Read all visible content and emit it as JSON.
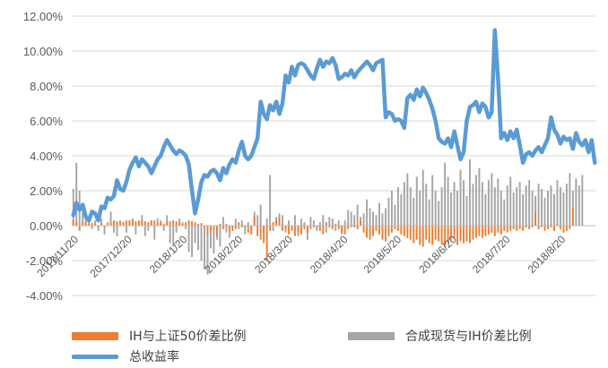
{
  "chart_data": {
    "type": "bar+line",
    "y_axis": {
      "ticks": [
        "12.00%",
        "10.00%",
        "8.00%",
        "6.00%",
        "4.00%",
        "2.00%",
        "0.00%",
        "-2.00%",
        "-4.00%"
      ],
      "tick_values": [
        12,
        10,
        8,
        6,
        4,
        2,
        0,
        -2,
        -4
      ],
      "min": -4,
      "max": 12
    },
    "x_axis": {
      "ticks": [
        "2017/11/20",
        "2017/12/20",
        "2018/1/20",
        "2018/2/20",
        "2018/3/20",
        "2018/4/20",
        "2018/5/20",
        "2018/6/20",
        "2018/7/20",
        "2018/8/20"
      ],
      "start_date": "2017-11-20",
      "end_date": "2018-09-10"
    },
    "grid": "horizontal",
    "legend_position": "bottom",
    "series": [
      {
        "name": "IH与上证50价差比例",
        "type": "bar",
        "color": "#ED7D31",
        "unit": "%",
        "values": [
          0.3,
          0.2,
          -0.3,
          0.25,
          0.2,
          0.1,
          0.15,
          0.1,
          -0.1,
          0.1,
          -0.1,
          0.05,
          0.2,
          0.3,
          0.25,
          0.2,
          0.2,
          0.3,
          0.3,
          0.35,
          0.25,
          0.3,
          0.3,
          0.25,
          0.2,
          0.3,
          0.3,
          0.15,
          0.2,
          0.1,
          0.2,
          0.25,
          0.3,
          0.25,
          0.2,
          0.1,
          0.2,
          0.3,
          0.25,
          0.2,
          0.1,
          0.15,
          -0.1,
          -0.5,
          -0.3,
          -0.2,
          -0.6,
          0.1,
          -0.2,
          0.1,
          -0.3,
          -0.3,
          -0.2,
          0.2,
          -0.1,
          -0.1,
          -0.4,
          -0.5,
          0.5,
          -0.6,
          -0.8,
          -1.0,
          -2.0,
          -0.3,
          0.2,
          0.3,
          0.5,
          -0.3,
          -0.2,
          -0.5,
          -0.3,
          -0.6,
          -0.4,
          -0.5,
          -0.2,
          -0.4,
          -0.2,
          -0.1,
          -0.1,
          -0.3,
          -0.5,
          0.2,
          -0.1,
          -0.2,
          0.1,
          -0.2,
          -0.4,
          -0.5,
          -0.2,
          -0.1,
          -0.1,
          -0.2,
          0.3,
          -0.4,
          -0.7,
          -0.8,
          -0.6,
          -0.3,
          -0.5,
          -0.8,
          -0.9,
          -0.6,
          -0.4,
          -0.2,
          -0.3,
          -0.5,
          -0.6,
          -0.7,
          -0.8,
          -1.0,
          -0.8,
          -1.1,
          -1.2,
          -0.8,
          -1.0,
          -1.1,
          -0.8,
          -0.9,
          -1.1,
          -1.2,
          -1.0,
          -0.8,
          -0.7,
          -1.1,
          -0.9,
          -1.0,
          -0.9,
          -1.0,
          -0.8,
          -0.7,
          -0.6,
          -0.7,
          -0.6,
          -0.5,
          -0.4,
          -0.6,
          -0.4,
          -0.5,
          -0.3,
          -0.4,
          -0.3,
          -0.2,
          -0.3,
          -0.2,
          -0.3,
          -0.1,
          -0.2,
          -0.1,
          0.8,
          -0.2,
          -0.1,
          -0.3,
          -0.2,
          -0.1,
          -0.3,
          0.1,
          -0.2,
          -0.4,
          -0.3,
          -0.2,
          1.0
        ]
      },
      {
        "name": "合成现货与IH价差比例",
        "type": "bar",
        "color": "#A5A5A5",
        "unit": "%",
        "values": [
          2.1,
          3.6,
          2.0,
          1.0,
          0.8,
          0.5,
          -0.2,
          0.3,
          -0.3,
          0.4,
          -0.5,
          0.2,
          0.8,
          -0.4,
          -0.6,
          0.3,
          0.2,
          -0.4,
          0.3,
          0.4,
          -0.5,
          0.2,
          0.6,
          -0.6,
          -0.3,
          0.2,
          -0.8,
          0.4,
          0.3,
          -0.3,
          0.6,
          -1.0,
          -1.2,
          -0.4,
          0.4,
          0.2,
          -0.2,
          -1.5,
          -1.8,
          -1.0,
          -1.4,
          -2.0,
          -2.5,
          -2.8,
          -1.3,
          -1.6,
          -0.8,
          -1.2,
          0.5,
          -0.4,
          -0.7,
          -0.3,
          0.4,
          -0.2,
          0.3,
          -0.5,
          0.2,
          -0.3,
          0.8,
          0.6,
          1.2,
          -0.5,
          0.4,
          2.9,
          -0.3,
          0.5,
          0.7,
          0.6,
          -0.4,
          0.3,
          -0.2,
          0.6,
          -0.6,
          0.4,
          0.2,
          -0.8,
          0.5,
          0.3,
          -0.3,
          0.2,
          0.6,
          -0.4,
          0.5,
          0.4,
          -0.3,
          0.3,
          -0.5,
          0.3,
          0.9,
          0.8,
          0.6,
          1.2,
          0.5,
          0.7,
          1.5,
          1.0,
          0.8,
          0.6,
          1.3,
          0.7,
          1.0,
          1.6,
          2.0,
          1.2,
          2.2,
          1.8,
          2.5,
          3.0,
          2.2,
          1.6,
          2.8,
          2.0,
          3.2,
          2.4,
          1.5,
          2.9,
          2.0,
          1.4,
          2.2,
          3.6,
          2.8,
          1.9,
          2.5,
          2.0,
          3.2,
          2.6,
          1.7,
          3.8,
          2.4,
          2.9,
          3.3,
          2.5,
          1.8,
          2.6,
          3.0,
          2.2,
          2.7,
          2.0,
          1.5,
          2.3,
          2.8,
          1.9,
          2.2,
          2.5,
          1.8,
          2.3,
          2.6,
          2.0,
          1.7,
          2.4,
          2.1,
          1.6,
          2.0,
          2.3,
          1.8,
          2.6,
          2.2,
          1.9,
          2.4,
          3.0,
          2.0,
          2.7,
          2.3,
          2.9
        ]
      },
      {
        "name": "总收益率",
        "type": "line",
        "color": "#5B9BD5",
        "unit": "%",
        "values": [
          0.6,
          1.3,
          0.9,
          1.2,
          0.5,
          0.3,
          0.8,
          0.7,
          0.3,
          1.1,
          1.0,
          1.6,
          1.5,
          1.7,
          2.6,
          2.1,
          2.0,
          2.5,
          3.2,
          3.6,
          3.9,
          3.4,
          3.8,
          3.6,
          3.4,
          3.0,
          3.4,
          3.8,
          4.0,
          4.5,
          4.9,
          4.6,
          4.3,
          4.1,
          4.3,
          4.2,
          4.0,
          3.5,
          2.0,
          0.7,
          1.5,
          2.5,
          2.9,
          2.8,
          3.1,
          3.2,
          3.0,
          2.6,
          3.3,
          3.0,
          3.5,
          3.8,
          3.6,
          4.3,
          4.8,
          4.0,
          3.8,
          4.0,
          4.5,
          5.0,
          7.1,
          6.4,
          6.1,
          6.9,
          6.6,
          7.1,
          6.4,
          7.0,
          8.6,
          8.2,
          9.1,
          8.6,
          9.2,
          9.3,
          9.2,
          8.9,
          8.6,
          8.4,
          9.0,
          9.5,
          9.1,
          9.4,
          9.3,
          9.6,
          9.2,
          8.4,
          8.5,
          8.7,
          8.6,
          8.9,
          8.5,
          8.8,
          9.0,
          9.2,
          9.4,
          9.2,
          8.9,
          9.3,
          9.4,
          9.5,
          6.2,
          6.5,
          6.4,
          6.0,
          6.1,
          6.0,
          5.6,
          7.3,
          7.5,
          7.2,
          7.8,
          7.4,
          7.9,
          7.6,
          7.2,
          6.7,
          6.0,
          5.0,
          4.8,
          4.7,
          5.0,
          4.5,
          5.4,
          4.6,
          3.8,
          4.2,
          6.0,
          6.8,
          6.9,
          7.1,
          6.5,
          7.0,
          6.8,
          6.2,
          6.5,
          11.2,
          8.5,
          5.0,
          5.3,
          4.9,
          5.4,
          5.0,
          5.5,
          4.6,
          3.6,
          4.1,
          4.2,
          4.0,
          4.3,
          4.5,
          4.2,
          4.6,
          5.0,
          6.2,
          5.5,
          5.2,
          4.7,
          5.1,
          4.9,
          5.0,
          4.4,
          5.3,
          4.8,
          4.6,
          4.9,
          4.2,
          4.9,
          3.6
        ]
      }
    ]
  }
}
